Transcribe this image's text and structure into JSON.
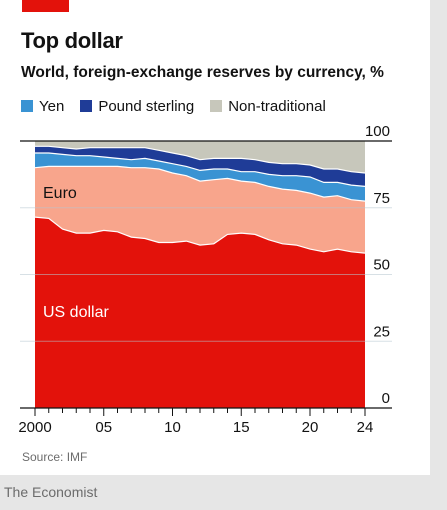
{
  "title": "Top dollar",
  "subtitle": "World, foreign-exchange reserves by currency, %",
  "source": "Source: IMF",
  "footer": "The Economist",
  "chart_data": {
    "type": "area",
    "stacked": true,
    "ylim": [
      0,
      100
    ],
    "y_ticks": [
      "0",
      "25",
      "50",
      "75",
      "100"
    ],
    "x_tick_labels": [
      {
        "x": 2000,
        "label": "2000"
      },
      {
        "x": 2005,
        "label": "05"
      },
      {
        "x": 2010,
        "label": "10"
      },
      {
        "x": 2015,
        "label": "15"
      },
      {
        "x": 2020,
        "label": "20"
      },
      {
        "x": 2024,
        "label": "24"
      }
    ],
    "x": [
      2000,
      2001,
      2002,
      2003,
      2004,
      2005,
      2006,
      2007,
      2008,
      2009,
      2010,
      2011,
      2012,
      2013,
      2014,
      2015,
      2016,
      2017,
      2018,
      2019,
      2020,
      2021,
      2022,
      2023,
      2024
    ],
    "series": [
      {
        "name": "US dollar",
        "color": "#e3120b",
        "label": "US dollar",
        "values": [
          71.5,
          71.0,
          67.0,
          65.5,
          65.5,
          66.5,
          66.0,
          64.0,
          63.5,
          62.0,
          62.0,
          62.5,
          61.0,
          61.5,
          65.0,
          65.5,
          65.0,
          63.0,
          61.5,
          61.0,
          59.5,
          58.5,
          59.5,
          58.5,
          58.0
        ]
      },
      {
        "name": "Euro",
        "color": "#f8a58c",
        "label": "Euro",
        "values": [
          18.5,
          19.5,
          23.5,
          25.0,
          25.0,
          24.0,
          24.5,
          26.0,
          26.5,
          27.5,
          26.0,
          24.5,
          24.0,
          24.0,
          21.0,
          19.5,
          19.5,
          20.0,
          20.5,
          20.5,
          21.0,
          20.5,
          20.0,
          19.5,
          19.5
        ]
      },
      {
        "name": "Yen",
        "color": "#3a93d3",
        "legend": true,
        "values": [
          5.5,
          5.0,
          4.5,
          4.0,
          4.0,
          3.5,
          3.0,
          3.0,
          3.5,
          3.0,
          3.5,
          3.5,
          4.0,
          4.0,
          3.5,
          3.5,
          4.0,
          4.5,
          5.0,
          5.5,
          6.0,
          5.5,
          5.0,
          5.5,
          5.5
        ]
      },
      {
        "name": "Pound sterling",
        "color": "#1f3c97",
        "legend": true,
        "values": [
          2.5,
          2.5,
          2.5,
          2.5,
          3.0,
          3.5,
          4.0,
          4.5,
          4.0,
          4.0,
          4.0,
          4.0,
          4.0,
          4.0,
          4.0,
          5.0,
          4.5,
          4.5,
          4.5,
          4.5,
          4.5,
          5.0,
          5.0,
          5.0,
          5.0
        ]
      },
      {
        "name": "Non-traditional",
        "color": "#c7c7bb",
        "legend": true,
        "values": [
          2.0,
          2.0,
          2.5,
          3.0,
          2.5,
          2.5,
          2.5,
          2.5,
          2.5,
          3.5,
          4.5,
          5.5,
          7.0,
          6.5,
          6.5,
          6.5,
          7.0,
          8.0,
          8.5,
          8.5,
          9.0,
          10.5,
          10.5,
          11.5,
          12.0
        ]
      }
    ],
    "legend_placement": "top-left",
    "grid": true
  }
}
